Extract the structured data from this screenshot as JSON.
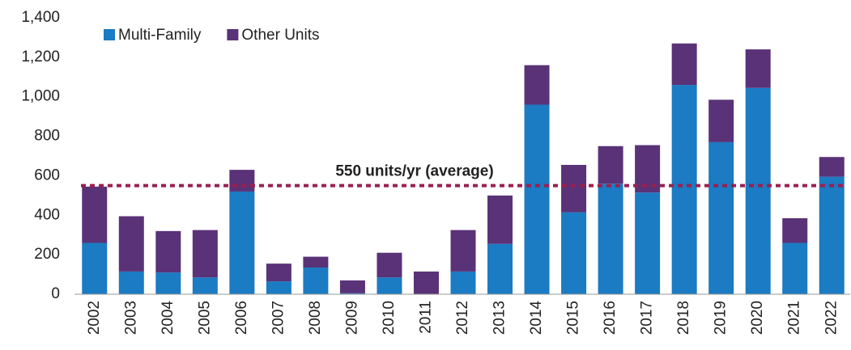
{
  "chart_data": {
    "type": "stacked_bar",
    "categories": [
      "2002",
      "2003",
      "2004",
      "2005",
      "2006",
      "2007",
      "2008",
      "2009",
      "2010",
      "2011",
      "2012",
      "2013",
      "2014",
      "2015",
      "2016",
      "2017",
      "2018",
      "2019",
      "2020",
      "2021",
      "2022"
    ],
    "series": [
      {
        "name": "Multi-Family",
        "color": "#1b7bc3",
        "values": [
          260,
          115,
          110,
          85,
          520,
          65,
          135,
          5,
          85,
          0,
          115,
          255,
          960,
          415,
          560,
          515,
          1060,
          770,
          1045,
          260,
          595
        ]
      },
      {
        "name": "Other Units",
        "color": "#5a3278",
        "values": [
          285,
          280,
          210,
          240,
          110,
          90,
          55,
          65,
          125,
          115,
          210,
          245,
          200,
          240,
          190,
          240,
          210,
          215,
          195,
          125,
          100
        ]
      }
    ],
    "ylim": [
      0,
      1400
    ],
    "yticks": [
      0,
      200,
      400,
      600,
      800,
      {
        "value": 1000,
        "label": "1,000"
      },
      {
        "value": 1200,
        "label": "1,200"
      },
      {
        "value": 1400,
        "label": "1,400"
      }
    ],
    "grid": false,
    "legend": "top-left",
    "average": {
      "value": 550,
      "label": "550 units/yr (average)",
      "color": "#9a1f50"
    }
  }
}
